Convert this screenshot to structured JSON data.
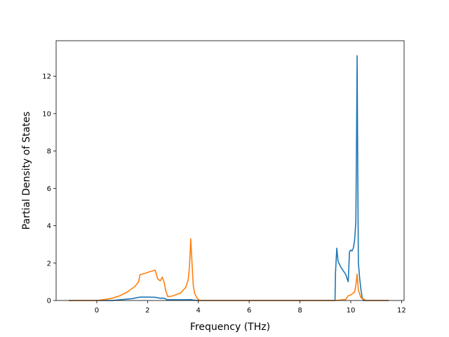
{
  "chart_data": {
    "type": "line",
    "title": "",
    "xlabel": "Frequency (THz)",
    "ylabel": "Partial Density of States",
    "xlim": [
      -1.6,
      12.1
    ],
    "ylim": [
      0,
      13.9
    ],
    "xticks": [
      0,
      2,
      4,
      6,
      8,
      10,
      12
    ],
    "yticks": [
      0,
      2,
      4,
      6,
      8,
      10,
      12
    ],
    "grid": false,
    "legend": "none",
    "series": [
      {
        "color": "#1f77b4",
        "x": [
          -1.1,
          0.6,
          1.0,
          1.4,
          1.7,
          2.0,
          2.3,
          2.5,
          2.6,
          2.7,
          2.75,
          3.0,
          3.5,
          3.7,
          3.8,
          4.0,
          6.0,
          8.0,
          9.38,
          9.4,
          9.45,
          9.5,
          9.6,
          9.7,
          9.8,
          9.85,
          9.9,
          9.95,
          10.0,
          10.05,
          10.1,
          10.15,
          10.2,
          10.23,
          10.25,
          10.28,
          10.3,
          10.35,
          10.4,
          10.45,
          10.5,
          11.5
        ],
        "y": [
          0,
          0,
          0.05,
          0.1,
          0.18,
          0.18,
          0.17,
          0.12,
          0.13,
          0.1,
          0.04,
          0.04,
          0.04,
          0.05,
          0.02,
          0,
          0,
          0,
          0,
          1.5,
          2.8,
          2.1,
          1.8,
          1.6,
          1.4,
          1.2,
          1.0,
          2.6,
          2.7,
          2.65,
          2.8,
          3.2,
          4.2,
          9.0,
          13.1,
          6.0,
          2.0,
          1.2,
          0.6,
          0.15,
          0,
          0
        ]
      },
      {
        "color": "#ff7f0e",
        "x": [
          -1.1,
          0.0,
          0.3,
          0.6,
          0.9,
          1.2,
          1.5,
          1.65,
          1.7,
          1.9,
          2.1,
          2.3,
          2.4,
          2.5,
          2.58,
          2.65,
          2.72,
          2.8,
          3.0,
          3.3,
          3.5,
          3.6,
          3.65,
          3.7,
          3.75,
          3.8,
          3.85,
          3.95,
          4.05,
          6.0,
          8.0,
          9.4,
          9.8,
          9.9,
          10.0,
          10.15,
          10.2,
          10.25,
          10.3,
          10.4,
          10.6,
          11.5
        ],
        "y": [
          0,
          0,
          0.05,
          0.12,
          0.25,
          0.45,
          0.75,
          1.0,
          1.38,
          1.45,
          1.55,
          1.62,
          1.15,
          1.05,
          1.25,
          1.0,
          0.5,
          0.2,
          0.25,
          0.4,
          0.7,
          1.1,
          1.8,
          3.3,
          2.0,
          0.8,
          0.4,
          0.12,
          0,
          0,
          0,
          0,
          0.05,
          0.25,
          0.3,
          0.45,
          0.8,
          1.4,
          0.55,
          0.15,
          0,
          0
        ]
      }
    ]
  }
}
